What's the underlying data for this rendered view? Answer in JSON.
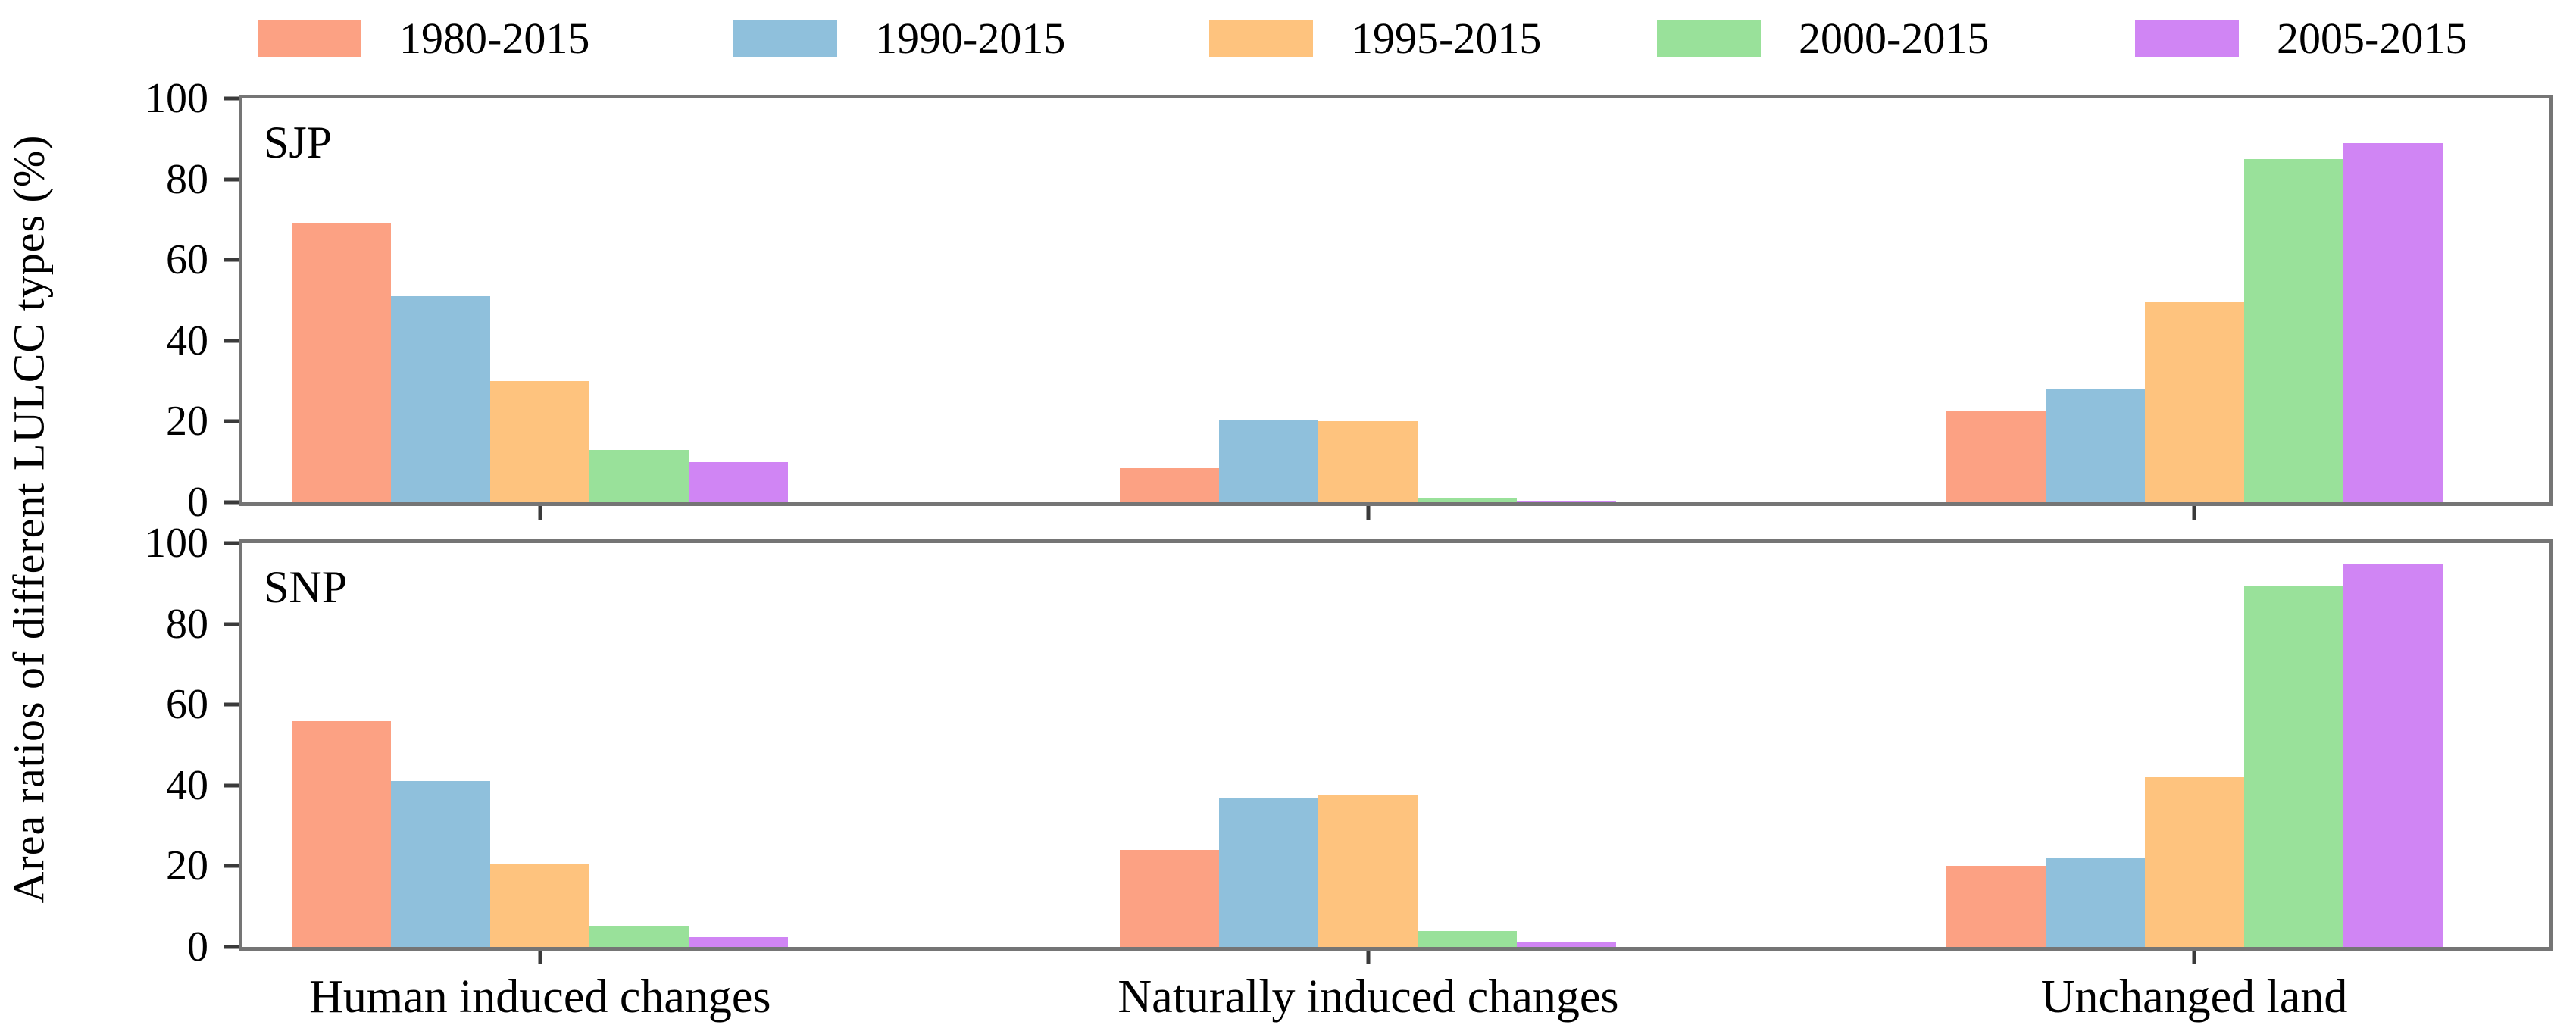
{
  "chart_data": {
    "type": "bar",
    "title": "",
    "ylabel": "Area ratios of different LULCC types (%)",
    "xlabel": "",
    "ylim": [
      0,
      100
    ],
    "yticks": [
      0,
      20,
      40,
      60,
      80,
      100
    ],
    "grid": false,
    "legend_position": "top",
    "categories": [
      "Human induced changes",
      "Naturally induced changes",
      "Unchanged land"
    ],
    "series_colors": [
      "#FCA183",
      "#8FC0DC",
      "#FEC37E",
      "#99E19A",
      "#D085F4"
    ],
    "spine_color": "#757575",
    "panels": [
      {
        "label": "SJP",
        "series": [
          {
            "name": "1980-2015",
            "values": [
              69,
              8.5,
              22.5
            ]
          },
          {
            "name": "1990-2015",
            "values": [
              51,
              20.5,
              28
            ]
          },
          {
            "name": "1995-2015",
            "values": [
              30,
              20,
              49.5
            ]
          },
          {
            "name": "2000-2015",
            "values": [
              13,
              1,
              85
            ]
          },
          {
            "name": "2005-2015",
            "values": [
              10,
              0.4,
              89
            ]
          }
        ]
      },
      {
        "label": "SNP",
        "series": [
          {
            "name": "1980-2015",
            "values": [
              56,
              24,
              20
            ]
          },
          {
            "name": "1990-2015",
            "values": [
              41,
              37,
              22
            ]
          },
          {
            "name": "1995-2015",
            "values": [
              20.5,
              37.5,
              42
            ]
          },
          {
            "name": "2000-2015",
            "values": [
              5,
              4,
              89.5
            ]
          },
          {
            "name": "2005-2015",
            "values": [
              2.5,
              1.2,
              95
            ]
          }
        ]
      }
    ]
  },
  "layout_note": ""
}
